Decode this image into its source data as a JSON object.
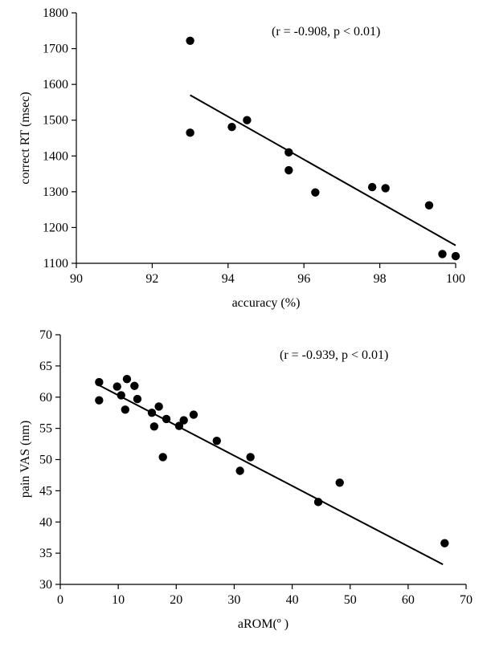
{
  "chart_data": [
    {
      "type": "scatter",
      "xlabel": "accuracy (%)",
      "ylabel": "correct RT (msec)",
      "annotation": "(r =  -0.908, p <  0.01)",
      "xlim": [
        90,
        100
      ],
      "ylim": [
        1100,
        1800
      ],
      "xticks": [
        90,
        92,
        94,
        96,
        98,
        100
      ],
      "yticks": [
        1100,
        1200,
        1300,
        1400,
        1500,
        1600,
        1700,
        1800
      ],
      "grid": false,
      "points": [
        {
          "x": 93.0,
          "y": 1722
        },
        {
          "x": 93.0,
          "y": 1465
        },
        {
          "x": 94.1,
          "y": 1481
        },
        {
          "x": 94.5,
          "y": 1500
        },
        {
          "x": 95.6,
          "y": 1410
        },
        {
          "x": 95.6,
          "y": 1360
        },
        {
          "x": 96.3,
          "y": 1298
        },
        {
          "x": 97.8,
          "y": 1313
        },
        {
          "x": 98.15,
          "y": 1310
        },
        {
          "x": 99.3,
          "y": 1262
        },
        {
          "x": 99.65,
          "y": 1126
        },
        {
          "x": 100.0,
          "y": 1120
        }
      ],
      "trendline": {
        "x": [
          93.0,
          100.0
        ],
        "y": [
          1570,
          1150
        ]
      }
    },
    {
      "type": "scatter",
      "xlabel": "aROM(º  )",
      "ylabel": "pain VAS (nm)",
      "annotation": "(r =  -0.939, p <  0.01)",
      "xlim": [
        0,
        70
      ],
      "ylim": [
        30,
        70
      ],
      "xticks": [
        0,
        10,
        20,
        30,
        40,
        50,
        60,
        70
      ],
      "yticks": [
        30,
        35,
        40,
        45,
        50,
        55,
        60,
        65,
        70
      ],
      "grid": false,
      "points": [
        {
          "x": 6.7,
          "y": 62.4
        },
        {
          "x": 6.7,
          "y": 59.5
        },
        {
          "x": 9.8,
          "y": 61.7
        },
        {
          "x": 10.5,
          "y": 60.3
        },
        {
          "x": 11.2,
          "y": 58.0
        },
        {
          "x": 11.5,
          "y": 62.9
        },
        {
          "x": 12.8,
          "y": 61.8
        },
        {
          "x": 13.3,
          "y": 59.7
        },
        {
          "x": 15.8,
          "y": 57.5
        },
        {
          "x": 16.2,
          "y": 55.3
        },
        {
          "x": 17.0,
          "y": 58.5
        },
        {
          "x": 17.7,
          "y": 50.4
        },
        {
          "x": 18.3,
          "y": 56.5
        },
        {
          "x": 20.5,
          "y": 55.4
        },
        {
          "x": 21.3,
          "y": 56.3
        },
        {
          "x": 23.0,
          "y": 57.2
        },
        {
          "x": 27.0,
          "y": 53.0
        },
        {
          "x": 31.0,
          "y": 48.2
        },
        {
          "x": 32.8,
          "y": 50.4
        },
        {
          "x": 44.5,
          "y": 43.2
        },
        {
          "x": 48.2,
          "y": 46.3
        },
        {
          "x": 66.3,
          "y": 36.6
        }
      ],
      "trendline": {
        "x": [
          6.7,
          66.0
        ],
        "y": [
          61.9,
          33.2
        ]
      }
    }
  ]
}
